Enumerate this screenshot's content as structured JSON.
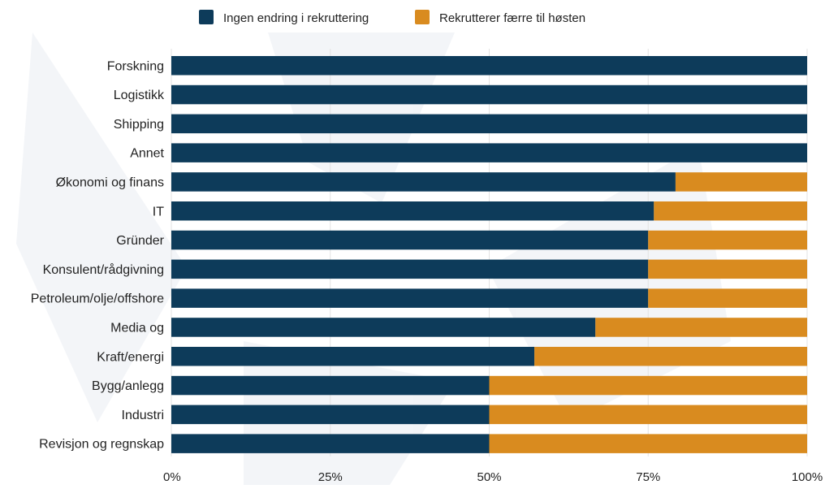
{
  "chart_data": {
    "type": "bar",
    "orientation": "horizontal",
    "stacked": true,
    "normalized": true,
    "categories": [
      "Forskning",
      "Logistikk",
      "Shipping",
      "Annet",
      "Økonomi og finans",
      "IT",
      "Gründer",
      "Konsulent/rådgivning",
      "Petroleum/olje/offshore",
      "Media og",
      "Kraft/energi",
      "Bygg/anlegg",
      "Industri",
      "Revisjon og regnskap"
    ],
    "series": [
      {
        "name": "Ingen endring i rekruttering",
        "color": "#0d3b5a",
        "values": [
          100,
          100,
          100,
          100,
          79.3,
          75.9,
          75,
          75,
          75,
          66.7,
          57.1,
          50,
          50,
          50
        ]
      },
      {
        "name": "Rekrutterer færre til høsten",
        "color": "#d98b1f",
        "values": [
          0,
          0,
          0,
          0,
          20.7,
          24.1,
          25,
          25,
          25,
          33.3,
          42.9,
          50,
          50,
          50
        ]
      }
    ],
    "xlim": [
      0,
      100
    ],
    "xticks": [
      {
        "value": 0,
        "label": "0%"
      },
      {
        "value": 25,
        "label": "25%"
      },
      {
        "value": 50,
        "label": "50%"
      },
      {
        "value": 75,
        "label": "75%"
      },
      {
        "value": 100,
        "label": "100%"
      }
    ],
    "grid": true,
    "legend_position": "top-center",
    "title": "",
    "xlabel": "",
    "ylabel": ""
  }
}
